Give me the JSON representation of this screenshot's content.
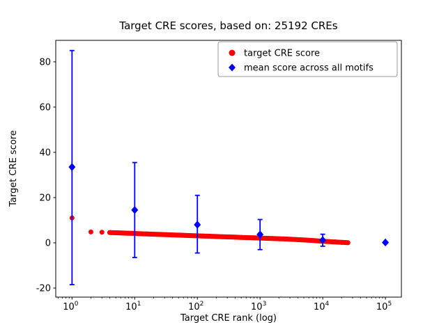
{
  "figure": {
    "background": "#ffffff"
  },
  "chart_data": {
    "type": "scatter",
    "title": "Target CRE scores, based on: 25192 CREs",
    "xlabel": "Target CRE rank (log)",
    "ylabel": "Target CRE score",
    "xscale": "log",
    "xlim": [
      0.55,
      180000
    ],
    "ylim": [
      -24,
      89.5
    ],
    "yticks": [
      -20,
      0,
      20,
      40,
      60,
      80
    ],
    "xtick_exponents": [
      0,
      1,
      2,
      3,
      4,
      5
    ],
    "grid": false,
    "legend": {
      "position": "upper right",
      "entries": [
        "target CRE score",
        "mean score across all motifs"
      ]
    },
    "series": [
      {
        "name": "target CRE score",
        "type": "scatter",
        "marker": "circle",
        "color": "#ff0000",
        "points": [
          [
            1,
            11.0
          ],
          [
            2,
            4.8
          ],
          [
            3,
            4.7
          ],
          [
            4,
            4.55
          ],
          [
            5,
            4.45
          ],
          [
            6,
            4.35
          ],
          [
            7,
            4.3
          ],
          [
            8,
            4.25
          ],
          [
            9,
            4.2
          ],
          [
            10,
            4.15
          ],
          [
            13,
            4.0
          ],
          [
            16,
            3.9
          ],
          [
            20,
            3.8
          ],
          [
            25,
            3.7
          ],
          [
            32,
            3.6
          ],
          [
            40,
            3.5
          ],
          [
            50,
            3.4
          ],
          [
            63,
            3.3
          ],
          [
            79,
            3.2
          ],
          [
            100,
            3.1
          ],
          [
            126,
            3.0
          ],
          [
            158,
            2.9
          ],
          [
            200,
            2.8
          ],
          [
            251,
            2.7
          ],
          [
            316,
            2.6
          ],
          [
            398,
            2.5
          ],
          [
            501,
            2.4
          ],
          [
            631,
            2.3
          ],
          [
            794,
            2.2
          ],
          [
            1000,
            2.1
          ],
          [
            1259,
            2.0
          ],
          [
            1585,
            1.9
          ],
          [
            2000,
            1.8
          ],
          [
            2512,
            1.7
          ],
          [
            3162,
            1.55
          ],
          [
            3981,
            1.4
          ],
          [
            5012,
            1.25
          ],
          [
            6310,
            1.1
          ],
          [
            7943,
            0.9
          ],
          [
            10000,
            0.7
          ],
          [
            12589,
            0.55
          ],
          [
            15849,
            0.4
          ],
          [
            19953,
            0.2
          ],
          [
            25192,
            0.05
          ]
        ]
      },
      {
        "name": "mean score across all motifs",
        "type": "errorbar",
        "marker": "diamond",
        "color": "#0000ff",
        "points": [
          {
            "x": 1,
            "y": 33.5,
            "lo": -18.5,
            "hi": 85.0
          },
          {
            "x": 10,
            "y": 14.5,
            "lo": -6.5,
            "hi": 35.5
          },
          {
            "x": 100,
            "y": 8.0,
            "lo": -4.5,
            "hi": 21.0
          },
          {
            "x": 1000,
            "y": 3.7,
            "lo": -3.0,
            "hi": 10.3
          },
          {
            "x": 10000,
            "y": 1.2,
            "lo": -1.5,
            "hi": 3.8
          },
          {
            "x": 100000,
            "y": 0.15,
            "lo": -0.2,
            "hi": 0.5
          }
        ]
      }
    ]
  }
}
